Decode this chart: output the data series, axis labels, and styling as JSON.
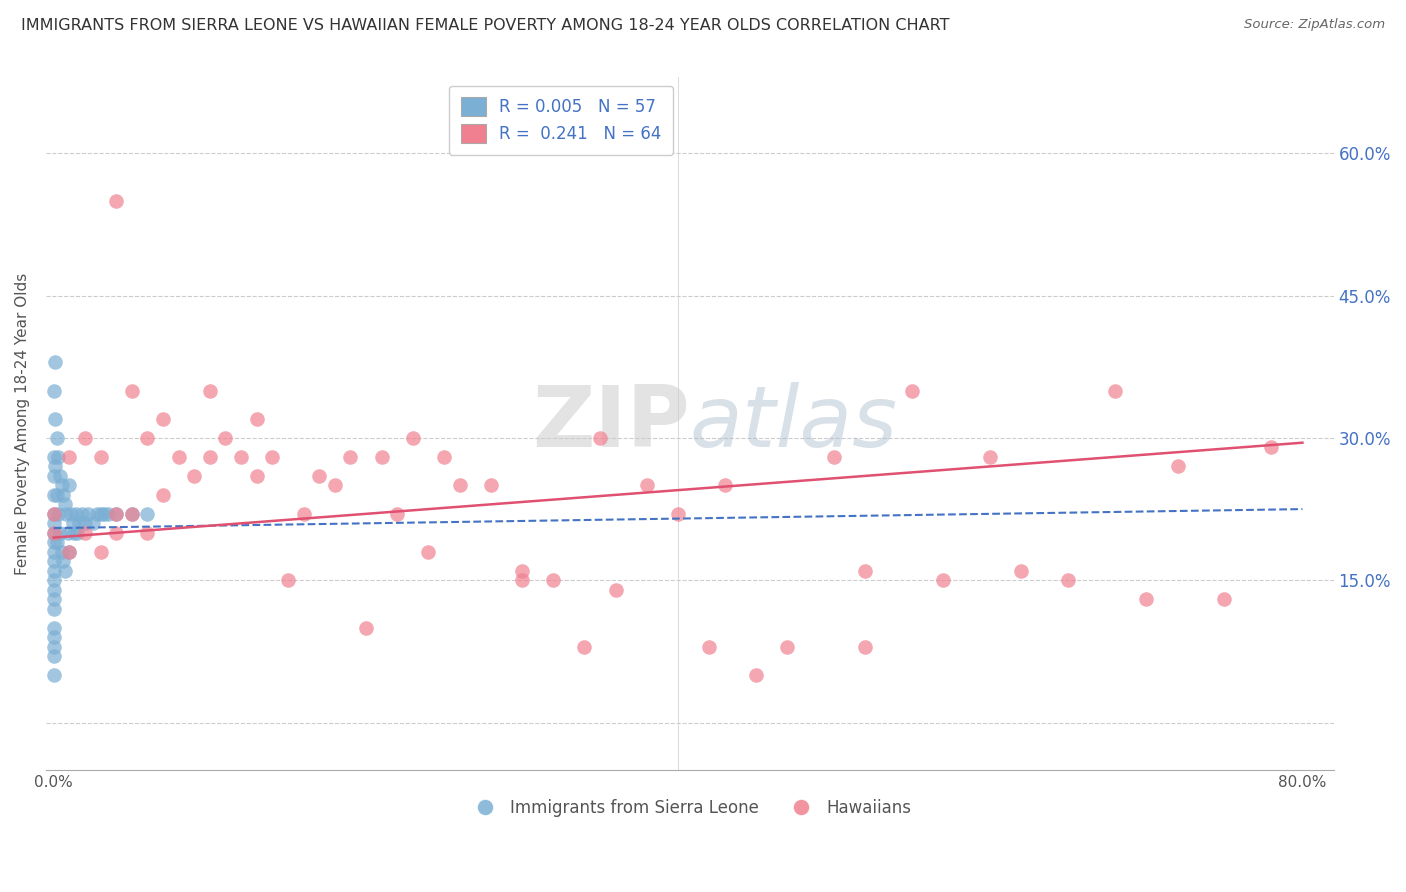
{
  "title": "IMMIGRANTS FROM SIERRA LEONE VS HAWAIIAN FEMALE POVERTY AMONG 18-24 YEAR OLDS CORRELATION CHART",
  "source": "Source: ZipAtlas.com",
  "ylabel": "Female Poverty Among 18-24 Year Olds",
  "ytick_values": [
    0.0,
    0.15,
    0.3,
    0.45,
    0.6
  ],
  "ytick_labels": [
    "",
    "15.0%",
    "30.0%",
    "45.0%",
    "60.0%"
  ],
  "xlim": [
    0.0,
    0.8
  ],
  "ylim": [
    -0.05,
    0.68
  ],
  "legend_label_1": "R = 0.005   N = 57",
  "legend_label_2": "R =  0.241   N = 64",
  "legend_labels_bottom": [
    "Immigrants from Sierra Leone",
    "Hawaiians"
  ],
  "blue_color": "#7bafd4",
  "pink_color": "#f08090",
  "blue_line_color": "#4472c4",
  "pink_line_color": "#e05070",
  "watermark": "ZIPatlas",
  "blue_scatter_x": [
    0.0,
    0.0,
    0.0,
    0.0,
    0.0,
    0.0,
    0.0,
    0.0,
    0.0,
    0.0,
    0.0,
    0.0,
    0.0,
    0.0,
    0.0,
    0.0,
    0.0,
    0.0,
    0.0,
    0.0,
    0.001,
    0.001,
    0.001,
    0.002,
    0.002,
    0.002,
    0.003,
    0.003,
    0.004,
    0.004,
    0.005,
    0.005,
    0.006,
    0.006,
    0.007,
    0.007,
    0.008,
    0.009,
    0.01,
    0.01,
    0.011,
    0.012,
    0.013,
    0.014,
    0.015,
    0.016,
    0.018,
    0.02,
    0.022,
    0.025,
    0.028,
    0.03,
    0.032,
    0.035,
    0.04,
    0.05,
    0.06
  ],
  "blue_scatter_y": [
    0.35,
    0.28,
    0.26,
    0.24,
    0.22,
    0.21,
    0.2,
    0.19,
    0.18,
    0.17,
    0.16,
    0.15,
    0.14,
    0.13,
    0.12,
    0.1,
    0.09,
    0.08,
    0.07,
    0.05,
    0.38,
    0.32,
    0.27,
    0.3,
    0.24,
    0.19,
    0.28,
    0.22,
    0.26,
    0.2,
    0.25,
    0.18,
    0.24,
    0.17,
    0.23,
    0.16,
    0.22,
    0.2,
    0.25,
    0.18,
    0.22,
    0.21,
    0.2,
    0.22,
    0.2,
    0.21,
    0.22,
    0.21,
    0.22,
    0.21,
    0.22,
    0.22,
    0.22,
    0.22,
    0.22,
    0.22,
    0.22
  ],
  "pink_scatter_x": [
    0.0,
    0.0,
    0.01,
    0.01,
    0.02,
    0.02,
    0.03,
    0.03,
    0.04,
    0.04,
    0.05,
    0.05,
    0.06,
    0.06,
    0.07,
    0.07,
    0.08,
    0.09,
    0.1,
    0.1,
    0.11,
    0.12,
    0.13,
    0.13,
    0.14,
    0.15,
    0.16,
    0.17,
    0.18,
    0.19,
    0.2,
    0.21,
    0.22,
    0.23,
    0.24,
    0.25,
    0.26,
    0.28,
    0.3,
    0.32,
    0.34,
    0.35,
    0.36,
    0.38,
    0.4,
    0.42,
    0.43,
    0.45,
    0.47,
    0.5,
    0.52,
    0.55,
    0.57,
    0.6,
    0.62,
    0.65,
    0.68,
    0.7,
    0.72,
    0.75,
    0.78,
    0.04,
    0.3,
    0.52
  ],
  "pink_scatter_y": [
    0.22,
    0.2,
    0.28,
    0.18,
    0.3,
    0.2,
    0.28,
    0.18,
    0.55,
    0.2,
    0.35,
    0.22,
    0.3,
    0.2,
    0.32,
    0.24,
    0.28,
    0.26,
    0.35,
    0.28,
    0.3,
    0.28,
    0.32,
    0.26,
    0.28,
    0.15,
    0.22,
    0.26,
    0.25,
    0.28,
    0.1,
    0.28,
    0.22,
    0.3,
    0.18,
    0.28,
    0.25,
    0.25,
    0.15,
    0.15,
    0.08,
    0.3,
    0.14,
    0.25,
    0.22,
    0.08,
    0.25,
    0.05,
    0.08,
    0.28,
    0.16,
    0.35,
    0.15,
    0.28,
    0.16,
    0.15,
    0.35,
    0.13,
    0.27,
    0.13,
    0.29,
    0.22,
    0.16,
    0.08
  ],
  "blue_line_x": [
    0.0,
    0.8
  ],
  "blue_line_y": [
    0.205,
    0.225
  ],
  "pink_line_x": [
    0.0,
    0.8
  ],
  "pink_line_y": [
    0.195,
    0.295
  ]
}
